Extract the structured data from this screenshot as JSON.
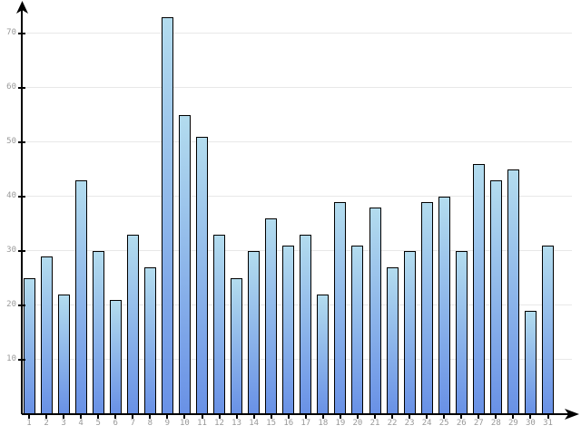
{
  "chart_data": {
    "type": "bar",
    "title": "",
    "xlabel": "",
    "ylabel": "",
    "categories": [
      "1",
      "2",
      "3",
      "4",
      "5",
      "6",
      "7",
      "8",
      "9",
      "10",
      "11",
      "12",
      "13",
      "14",
      "15",
      "16",
      "17",
      "18",
      "19",
      "20",
      "21",
      "22",
      "23",
      "24",
      "25",
      "26",
      "27",
      "28",
      "29",
      "30",
      "31"
    ],
    "values": [
      25,
      29,
      22,
      43,
      30,
      21,
      33,
      27,
      73,
      55,
      51,
      33,
      25,
      30,
      36,
      31,
      33,
      22,
      39,
      31,
      38,
      27,
      30,
      39,
      40,
      30,
      46,
      43,
      45,
      19,
      31
    ],
    "ylim": [
      0,
      75
    ],
    "yticks": [
      10,
      20,
      30,
      40,
      50,
      60,
      70
    ],
    "grid": true,
    "legend": "none",
    "colors": {
      "bar_gradient_top": "#b3dcee",
      "bar_gradient_bottom": "#6991e6",
      "bar_border": "#000000",
      "gridline": "#e8e8e8",
      "axis": "#000000",
      "tick_label": "#999999"
    }
  }
}
